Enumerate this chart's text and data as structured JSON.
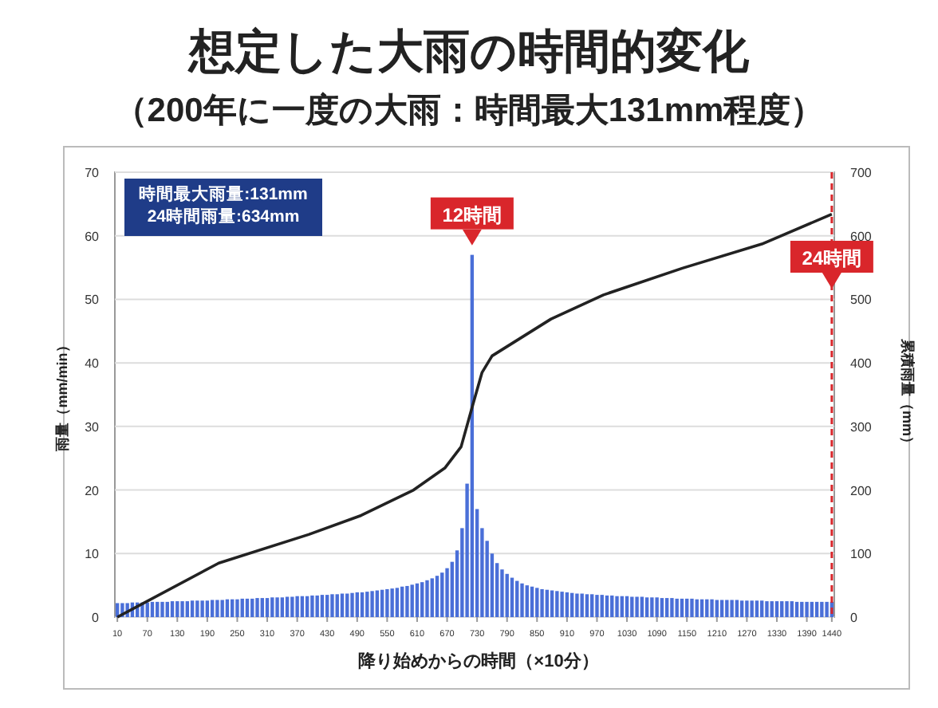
{
  "chart_data": {
    "type": "bar",
    "title": "想定した大雨の時間的変化",
    "subtitle": "（200年に一度の大雨：時間最大131mm程度）",
    "xlabel": "降り始めからの時間（×10分）",
    "ylabel": "雨量（mm/min）",
    "y2label": "累積雨量（mm）",
    "annotations": [
      "時間最大雨量:131mm",
      "24時間雨量:634mm",
      {
        "text": "12時間",
        "x": 720,
        "y": 57
      }
    ],
    "x": [
      10,
      20,
      30,
      40,
      50,
      60,
      70,
      80,
      90,
      100,
      110,
      120,
      130,
      140,
      150,
      160,
      170,
      180,
      190,
      200,
      210,
      220,
      230,
      240,
      250,
      260,
      270,
      280,
      290,
      300,
      310,
      320,
      330,
      340,
      350,
      360,
      370,
      380,
      390,
      400,
      410,
      420,
      430,
      440,
      450,
      460,
      470,
      480,
      490,
      500,
      510,
      520,
      530,
      540,
      550,
      560,
      570,
      580,
      590,
      600,
      610,
      620,
      630,
      640,
      650,
      660,
      670,
      680,
      690,
      700,
      710,
      720,
      730,
      740,
      750,
      760,
      770,
      780,
      790,
      800,
      810,
      820,
      830,
      840,
      850,
      860,
      870,
      880,
      890,
      900,
      910,
      920,
      930,
      940,
      950,
      960,
      970,
      980,
      990,
      1000,
      1010,
      1020,
      1030,
      1040,
      1050,
      1060,
      1070,
      1080,
      1090,
      1100,
      1110,
      1120,
      1130,
      1140,
      1150,
      1160,
      1170,
      1180,
      1190,
      1200,
      1210,
      1220,
      1230,
      1240,
      1250,
      1260,
      1270,
      1280,
      1290,
      1300,
      1310,
      1320,
      1330,
      1340,
      1350,
      1360,
      1370,
      1380,
      1390,
      1400,
      1410,
      1420,
      1430,
      1440
    ],
    "series": [
      {
        "color": "#4a6fd8",
        "values": [
          2.2,
          2.2,
          2.2,
          2.3,
          2.3,
          2.3,
          2.3,
          2.4,
          2.4,
          2.4,
          2.4,
          2.5,
          2.5,
          2.5,
          2.5,
          2.6,
          2.6,
          2.6,
          2.6,
          2.7,
          2.7,
          2.7,
          2.8,
          2.8,
          2.8,
          2.9,
          2.9,
          2.9,
          3.0,
          3.0,
          3.0,
          3.1,
          3.1,
          3.1,
          3.2,
          3.2,
          3.3,
          3.3,
          3.3,
          3.4,
          3.4,
          3.5,
          3.5,
          3.6,
          3.6,
          3.7,
          3.7,
          3.8,
          3.9,
          3.9,
          4.0,
          4.1,
          4.2,
          4.3,
          4.4,
          4.5,
          4.6,
          4.8,
          4.9,
          5.1,
          5.3,
          5.5,
          5.8,
          6.1,
          6.5,
          7.0,
          7.7,
          8.7,
          10.5,
          14,
          21,
          57,
          17,
          14,
          12,
          10,
          8.5,
          7.5,
          6.8,
          6.2,
          5.7,
          5.3,
          5.0,
          4.8,
          4.6,
          4.4,
          4.3,
          4.2,
          4.1,
          4.0,
          3.9,
          3.8,
          3.7,
          3.7,
          3.6,
          3.6,
          3.5,
          3.5,
          3.4,
          3.4,
          3.3,
          3.3,
          3.3,
          3.2,
          3.2,
          3.2,
          3.1,
          3.1,
          3.1,
          3.0,
          3.0,
          3.0,
          2.9,
          2.9,
          2.9,
          2.9,
          2.8,
          2.8,
          2.8,
          2.8,
          2.7,
          2.7,
          2.7,
          2.7,
          2.7,
          2.6,
          2.6,
          2.6,
          2.6,
          2.6,
          2.5,
          2.5,
          2.5,
          2.5,
          2.5,
          2.5,
          2.4,
          2.4,
          2.4,
          2.4,
          2.4,
          2.4,
          2.4,
          2.4
        ]
      },
      {
        "type": "line",
        "axis": "y2",
        "color": "#222222",
        "x": [
          10,
          213,
          393,
          498,
          603,
          666,
          698,
          720,
          740,
          760,
          878,
          983,
          1141,
          1300,
          1440
        ],
        "values": [
          0,
          85,
          130,
          160,
          200,
          235,
          268,
          330,
          385,
          411,
          469,
          507,
          549,
          587,
          634
        ]
      }
    ],
    "xlim": [
      5,
      1445
    ],
    "xticks": [
      10,
      70,
      130,
      190,
      250,
      310,
      370,
      430,
      490,
      550,
      610,
      670,
      730,
      790,
      850,
      910,
      970,
      1030,
      1090,
      1150,
      1210,
      1270,
      1330,
      1390,
      1440
    ],
    "ylim": [
      0,
      70
    ],
    "yticks": [
      0,
      10,
      20,
      30,
      40,
      50,
      60,
      70
    ],
    "y2lim": [
      0,
      700
    ],
    "y2ticks": [
      0,
      100,
      200,
      300,
      400,
      500,
      600,
      700
    ],
    "ref_lines": [
      {
        "axis": "x",
        "value": 1440,
        "label": "24時間",
        "color": "#d9262b",
        "line_style": "dashed"
      }
    ],
    "grid": "y"
  }
}
